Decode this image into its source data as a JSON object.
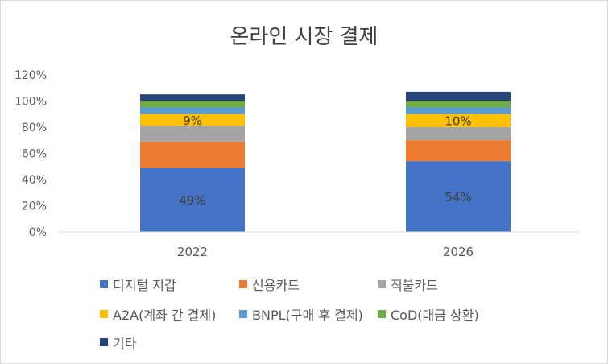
{
  "chart_data": {
    "type": "bar",
    "stacked": true,
    "title": "온라인 시장 결제",
    "categories": [
      "2022",
      "2026"
    ],
    "ylim": [
      0,
      120
    ],
    "yticks": [
      "0%",
      "20%",
      "40%",
      "60%",
      "80%",
      "100%",
      "120%"
    ],
    "grid": false,
    "legend_position": "bottom",
    "series": [
      {
        "name": "디지털 지갑",
        "color": "#4472C4",
        "values": [
          49,
          54
        ],
        "labels": [
          "49%",
          "54%"
        ]
      },
      {
        "name": "신용카드",
        "color": "#ED7D31",
        "values": [
          20,
          16
        ],
        "labels": [
          "",
          ""
        ]
      },
      {
        "name": "직불카드",
        "color": "#A5A5A5",
        "values": [
          12,
          10
        ],
        "labels": [
          "",
          ""
        ]
      },
      {
        "name": "A2A(계좌 간 결제)",
        "color": "#FFC000",
        "values": [
          9,
          10
        ],
        "labels": [
          "9%",
          "10%"
        ]
      },
      {
        "name": "BNPL(구매 후 결제)",
        "color": "#5B9BD5",
        "values": [
          5,
          5
        ],
        "labels": [
          "",
          ""
        ]
      },
      {
        "name": "CoD(대금 상환)",
        "color": "#70AD47",
        "values": [
          5,
          5
        ],
        "labels": [
          "",
          ""
        ]
      },
      {
        "name": "기타",
        "color": "#264478",
        "values": [
          5,
          7
        ],
        "labels": [
          "",
          ""
        ]
      }
    ]
  }
}
